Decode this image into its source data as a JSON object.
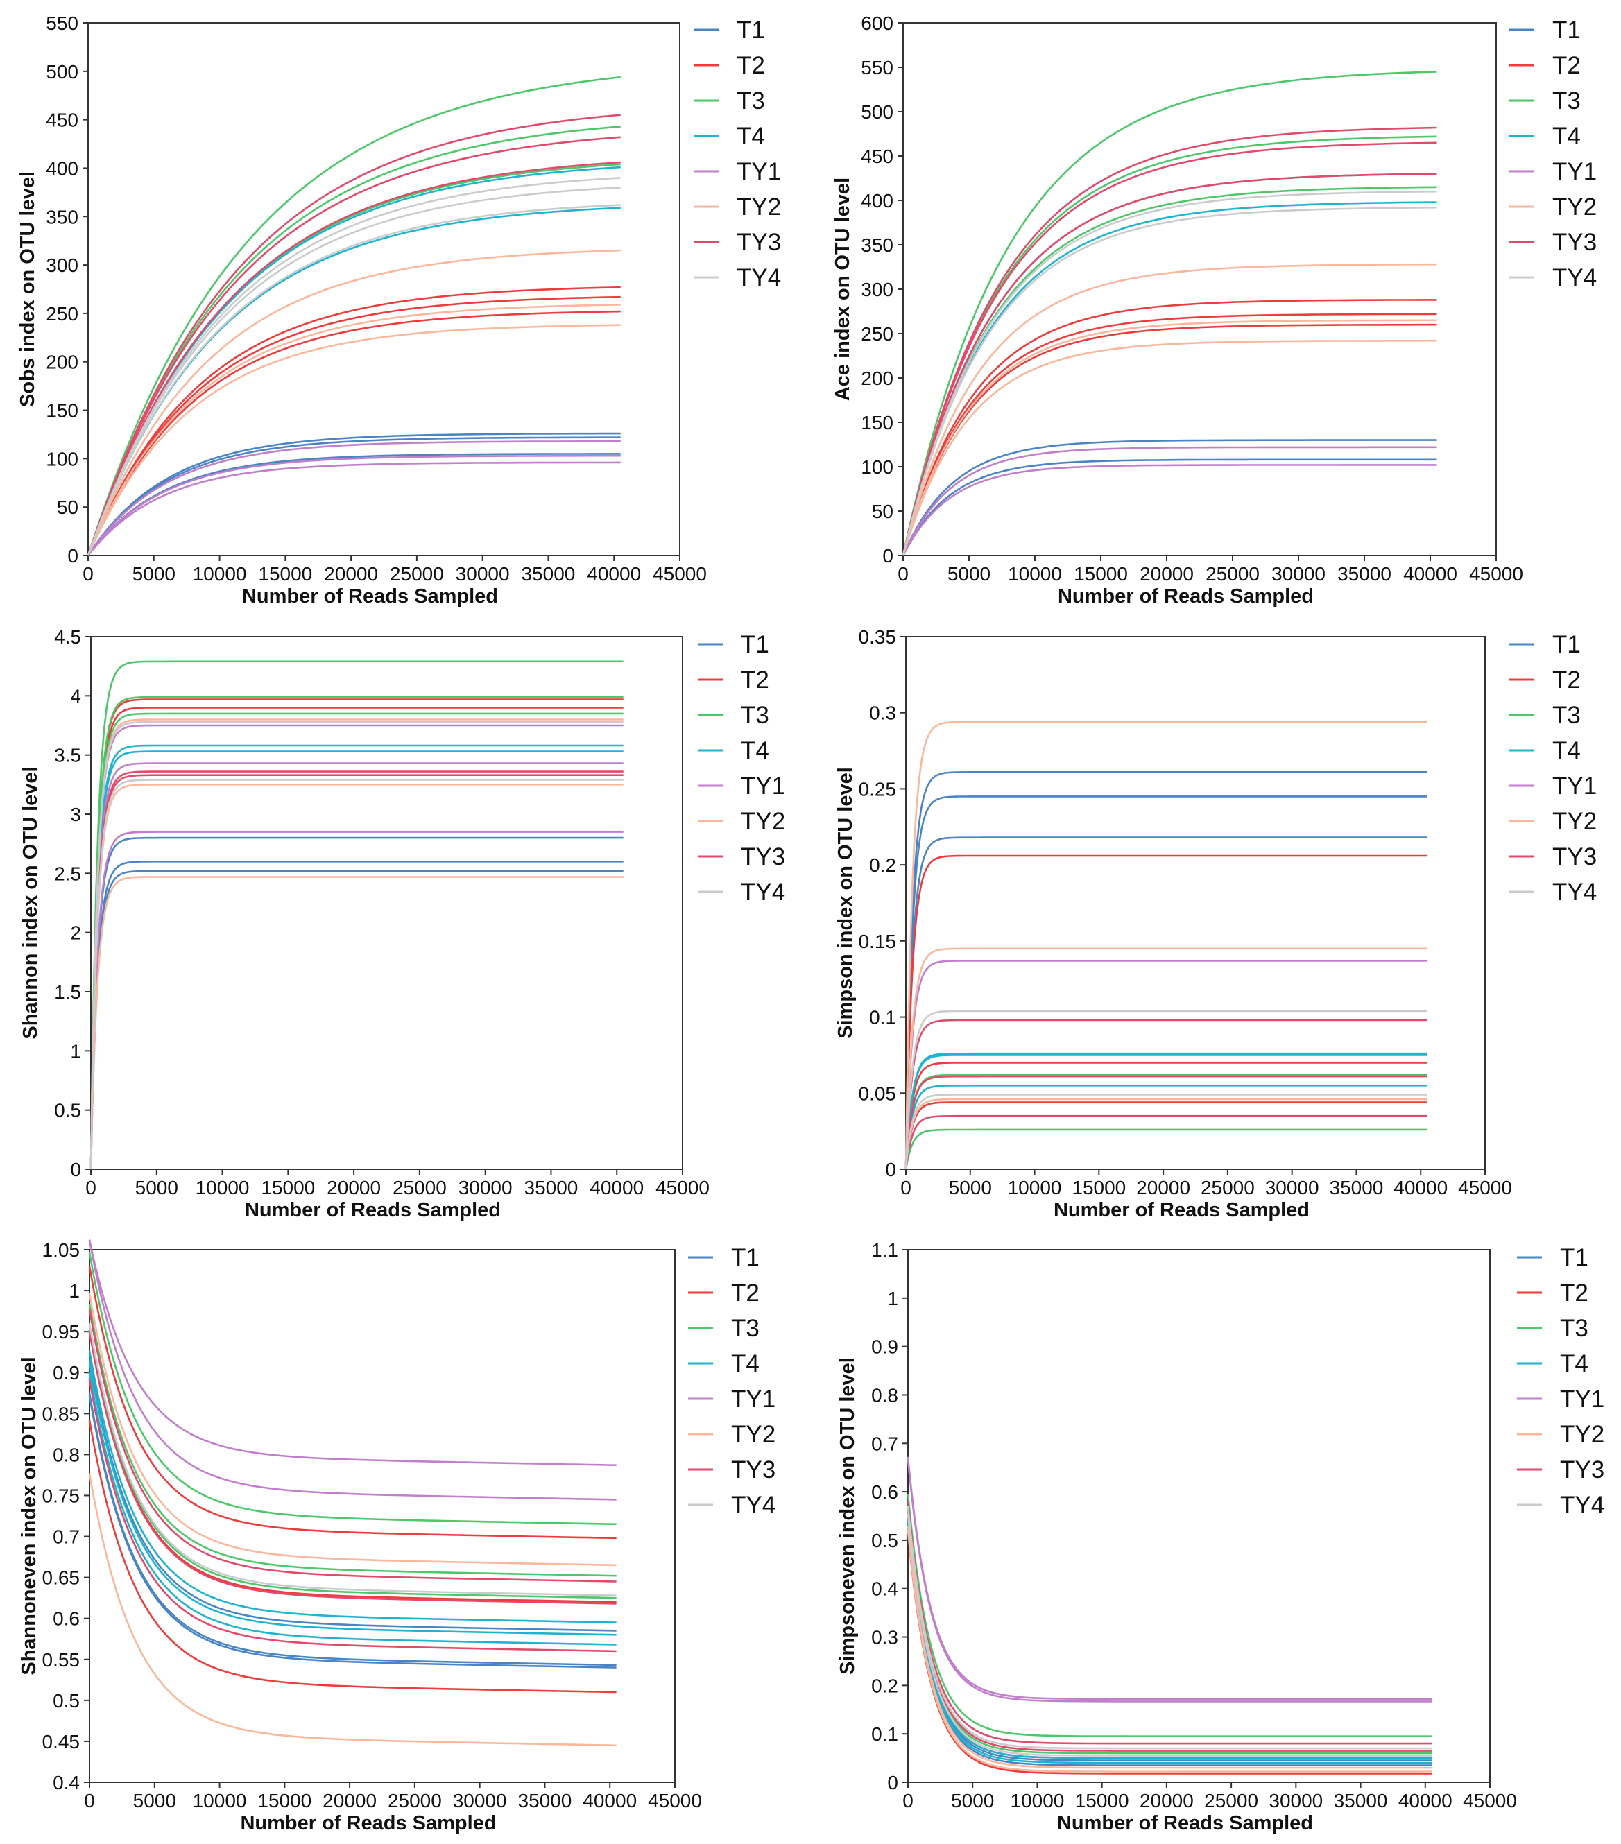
{
  "series_colors": {
    "T1": "#4a84c5",
    "T2": "#ee3b3b",
    "T3": "#4cc769",
    "T4": "#1cb4cf",
    "TY1": "#c07ecb",
    "TY2": "#fbb79c",
    "TY3": "#e14a6b",
    "TY4": "#c9cbcd"
  },
  "chart_data": [
    {
      "type": "line",
      "xlabel": "Number of Reads Sampled",
      "ylabel": "Sobs index on OTU level",
      "xlim": [
        0,
        45000
      ],
      "ylim": [
        0,
        550
      ],
      "xticks": [
        "0",
        "5000",
        "10000",
        "15000",
        "20000",
        "25000",
        "30000",
        "35000",
        "40000",
        "45000"
      ],
      "yticks": [
        "0",
        "50",
        "100",
        "150",
        "200",
        "250",
        "300",
        "350",
        "400",
        "450",
        "500",
        "550"
      ],
      "legend": [
        "T1",
        "T2",
        "T3",
        "T4",
        "TY1",
        "TY2",
        "TY3",
        "TY4"
      ],
      "legend_position": "right",
      "samples": [
        {
          "group": "T1",
          "final": 126
        },
        {
          "group": "T1",
          "final": 122
        },
        {
          "group": "T1",
          "final": 105
        },
        {
          "group": "T2",
          "final": 277
        },
        {
          "group": "T2",
          "final": 267
        },
        {
          "group": "T2",
          "final": 252
        },
        {
          "group": "T3",
          "final": 494
        },
        {
          "group": "T3",
          "final": 443
        },
        {
          "group": "T3",
          "final": 404
        },
        {
          "group": "T4",
          "final": 401
        },
        {
          "group": "T4",
          "final": 359
        },
        {
          "group": "TY1",
          "final": 118
        },
        {
          "group": "TY1",
          "final": 103
        },
        {
          "group": "TY1",
          "final": 96
        },
        {
          "group": "TY2",
          "final": 315
        },
        {
          "group": "TY2",
          "final": 259
        },
        {
          "group": "TY2",
          "final": 238
        },
        {
          "group": "TY3",
          "final": 455
        },
        {
          "group": "TY3",
          "final": 432
        },
        {
          "group": "TY3",
          "final": 406
        },
        {
          "group": "TY4",
          "final": 390
        },
        {
          "group": "TY4",
          "final": 380
        },
        {
          "group": "TY4",
          "final": 362
        }
      ]
    },
    {
      "type": "line",
      "xlabel": "Number of Reads Sampled",
      "ylabel": "Ace index on OTU level",
      "xlim": [
        0,
        45000
      ],
      "ylim": [
        0,
        600
      ],
      "xticks": [
        "0",
        "5000",
        "10000",
        "15000",
        "20000",
        "25000",
        "30000",
        "35000",
        "40000",
        "45000"
      ],
      "yticks": [
        "0",
        "50",
        "100",
        "150",
        "200",
        "250",
        "300",
        "350",
        "400",
        "450",
        "500",
        "550",
        "600"
      ],
      "legend": [
        "T1",
        "T2",
        "T3",
        "T4",
        "TY1",
        "TY2",
        "TY3",
        "TY4"
      ],
      "legend_position": "right",
      "samples": [
        {
          "group": "T1",
          "final": 130
        },
        {
          "group": "T1",
          "final": 108
        },
        {
          "group": "T2",
          "final": 288
        },
        {
          "group": "T2",
          "final": 272
        },
        {
          "group": "T2",
          "final": 260
        },
        {
          "group": "T3",
          "final": 545
        },
        {
          "group": "T3",
          "final": 472
        },
        {
          "group": "T3",
          "final": 415
        },
        {
          "group": "T4",
          "final": 430
        },
        {
          "group": "T4",
          "final": 398
        },
        {
          "group": "TY1",
          "final": 122
        },
        {
          "group": "TY1",
          "final": 102
        },
        {
          "group": "TY2",
          "final": 328
        },
        {
          "group": "TY2",
          "final": 265
        },
        {
          "group": "TY2",
          "final": 242
        },
        {
          "group": "TY3",
          "final": 482
        },
        {
          "group": "TY3",
          "final": 465
        },
        {
          "group": "TY3",
          "final": 430
        },
        {
          "group": "TY4",
          "final": 410
        },
        {
          "group": "TY4",
          "final": 392
        }
      ]
    },
    {
      "type": "line",
      "xlabel": "Number of Reads Sampled",
      "ylabel": "Shannon index on OTU level",
      "xlim": [
        0,
        45000
      ],
      "ylim": [
        0,
        4.5
      ],
      "xticks": [
        "0",
        "5000",
        "10000",
        "15000",
        "20000",
        "25000",
        "30000",
        "35000",
        "40000",
        "45000"
      ],
      "yticks": [
        "0",
        "0.5",
        "1",
        "1.5",
        "2",
        "2.5",
        "3",
        "3.5",
        "4",
        "4.5"
      ],
      "legend": [
        "T1",
        "T2",
        "T3",
        "T4",
        "TY1",
        "TY2",
        "TY3",
        "TY4"
      ],
      "legend_position": "right",
      "samples": [
        {
          "group": "T1",
          "final": 2.8
        },
        {
          "group": "T1",
          "final": 2.6
        },
        {
          "group": "T1",
          "final": 2.52
        },
        {
          "group": "T2",
          "final": 3.97
        },
        {
          "group": "T2",
          "final": 3.9
        },
        {
          "group": "T3",
          "final": 4.29
        },
        {
          "group": "T3",
          "final": 3.99
        },
        {
          "group": "T3",
          "final": 3.85
        },
        {
          "group": "T4",
          "final": 3.58
        },
        {
          "group": "T4",
          "final": 3.53
        },
        {
          "group": "TY1",
          "final": 3.75
        },
        {
          "group": "TY1",
          "final": 3.43
        },
        {
          "group": "TY1",
          "final": 2.85
        },
        {
          "group": "TY2",
          "final": 3.8
        },
        {
          "group": "TY2",
          "final": 3.25
        },
        {
          "group": "TY2",
          "final": 2.47
        },
        {
          "group": "TY3",
          "final": 3.36
        },
        {
          "group": "TY3",
          "final": 3.33
        },
        {
          "group": "TY4",
          "final": 3.78
        },
        {
          "group": "TY4",
          "final": 3.29
        }
      ]
    },
    {
      "type": "line",
      "xlabel": "Number of Reads Sampled",
      "ylabel": "Simpson index on OTU level",
      "xlim": [
        0,
        45000
      ],
      "ylim": [
        0,
        0.35
      ],
      "xticks": [
        "0",
        "5000",
        "10000",
        "15000",
        "20000",
        "25000",
        "30000",
        "35000",
        "40000",
        "45000"
      ],
      "yticks": [
        "0",
        "0.05",
        "0.1",
        "0.15",
        "0.2",
        "0.25",
        "0.3",
        "0.35"
      ],
      "legend": [
        "T1",
        "T2",
        "T3",
        "T4",
        "TY1",
        "TY2",
        "TY3",
        "TY4"
      ],
      "legend_position": "right",
      "samples": [
        {
          "group": "T1",
          "final": 0.261
        },
        {
          "group": "T1",
          "final": 0.245
        },
        {
          "group": "T1",
          "final": 0.218
        },
        {
          "group": "T2",
          "final": 0.206
        },
        {
          "group": "T2",
          "final": 0.07
        },
        {
          "group": "T2",
          "final": 0.044
        },
        {
          "group": "T3",
          "final": 0.062
        },
        {
          "group": "T3",
          "final": 0.026
        },
        {
          "group": "T4",
          "final": 0.076
        },
        {
          "group": "T4",
          "final": 0.075
        },
        {
          "group": "T4",
          "final": 0.055
        },
        {
          "group": "TY1",
          "final": 0.137
        },
        {
          "group": "TY2",
          "final": 0.294
        },
        {
          "group": "TY2",
          "final": 0.145
        },
        {
          "group": "TY2",
          "final": 0.046
        },
        {
          "group": "TY3",
          "final": 0.098
        },
        {
          "group": "TY3",
          "final": 0.061
        },
        {
          "group": "TY3",
          "final": 0.035
        },
        {
          "group": "TY4",
          "final": 0.104
        },
        {
          "group": "TY4",
          "final": 0.049
        }
      ]
    },
    {
      "type": "line",
      "xlabel": "Number of Reads Sampled",
      "ylabel": "Shannoneven index on OTU level",
      "xlim": [
        0,
        45000
      ],
      "ylim": [
        0.4,
        1.05
      ],
      "xticks": [
        "0",
        "5000",
        "10000",
        "15000",
        "20000",
        "25000",
        "30000",
        "35000",
        "40000",
        "45000"
      ],
      "yticks": [
        "0.4",
        "0.45",
        "0.5",
        "0.55",
        "0.6",
        "0.65",
        "0.7",
        "0.75",
        "0.8",
        "0.85",
        "0.9",
        "0.95",
        "1",
        "1.05"
      ],
      "legend": [
        "T1",
        "T2",
        "T3",
        "T4",
        "TY1",
        "TY2",
        "TY3",
        "TY4"
      ],
      "legend_position": "right",
      "samples": [
        {
          "group": "T1",
          "final": 0.585
        },
        {
          "group": "T1",
          "final": 0.543
        },
        {
          "group": "T1",
          "final": 0.54
        },
        {
          "group": "T2",
          "final": 0.698
        },
        {
          "group": "T2",
          "final": 0.51
        },
        {
          "group": "T2",
          "final": 0.62
        },
        {
          "group": "T3",
          "final": 0.715
        },
        {
          "group": "T3",
          "final": 0.652
        },
        {
          "group": "T3",
          "final": 0.625
        },
        {
          "group": "T4",
          "final": 0.595
        },
        {
          "group": "T4",
          "final": 0.58
        },
        {
          "group": "T4",
          "final": 0.568
        },
        {
          "group": "TY1",
          "final": 0.787
        },
        {
          "group": "TY1",
          "final": 0.745
        },
        {
          "group": "TY2",
          "final": 0.665
        },
        {
          "group": "TY2",
          "final": 0.445
        },
        {
          "group": "TY3",
          "final": 0.645
        },
        {
          "group": "TY3",
          "final": 0.618
        },
        {
          "group": "TY3",
          "final": 0.56
        },
        {
          "group": "TY4",
          "final": 0.628
        }
      ]
    },
    {
      "type": "line",
      "xlabel": "Number of Reads Sampled",
      "ylabel": "Simpsoneven index on OTU level",
      "xlim": [
        0,
        45000
      ],
      "ylim": [
        0,
        1.1
      ],
      "xticks": [
        "0",
        "5000",
        "10000",
        "15000",
        "20000",
        "25000",
        "30000",
        "35000",
        "40000",
        "45000"
      ],
      "yticks": [
        "0",
        "0.1",
        "0.2",
        "0.3",
        "0.4",
        "0.5",
        "0.6",
        "0.7",
        "0.8",
        "0.9",
        "1",
        "1.1"
      ],
      "legend": [
        "T1",
        "T2",
        "T3",
        "T4",
        "TY1",
        "TY2",
        "TY3",
        "TY4"
      ],
      "legend_position": "right",
      "samples": [
        {
          "group": "T1",
          "final": 0.045
        },
        {
          "group": "T1",
          "final": 0.035
        },
        {
          "group": "T2",
          "final": 0.05
        },
        {
          "group": "T2",
          "final": 0.018
        },
        {
          "group": "T3",
          "final": 0.095
        },
        {
          "group": "T3",
          "final": 0.06
        },
        {
          "group": "T4",
          "final": 0.05
        },
        {
          "group": "T4",
          "final": 0.04
        },
        {
          "group": "TY1",
          "final": 0.172
        },
        {
          "group": "TY1",
          "final": 0.167
        },
        {
          "group": "TY2",
          "final": 0.03
        },
        {
          "group": "TY2",
          "final": 0.022
        },
        {
          "group": "TY3",
          "final": 0.08
        },
        {
          "group": "TY3",
          "final": 0.065
        },
        {
          "group": "TY4",
          "final": 0.07
        },
        {
          "group": "TY4",
          "final": 0.055
        }
      ]
    }
  ]
}
